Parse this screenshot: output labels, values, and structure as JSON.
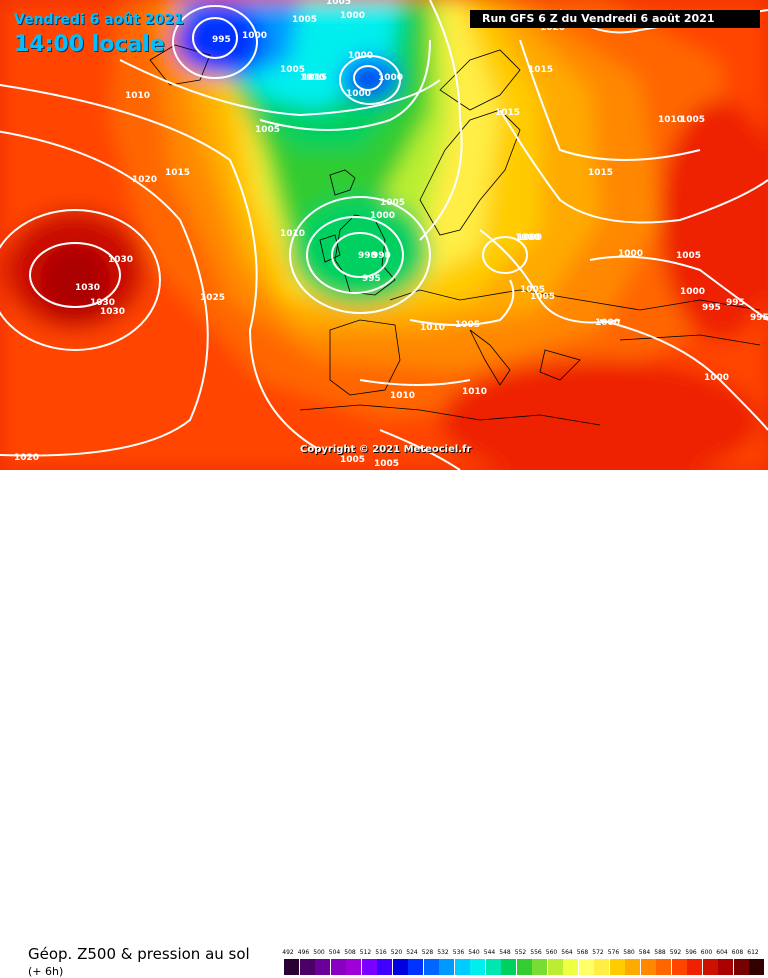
{
  "header": {
    "date": "Vendredi 6 août 2021",
    "time": "14:00 locale",
    "run": "Run GFS 6 Z du Vendredi 6 août 2021"
  },
  "copyright": "Copyright © 2021 Meteociel.fr",
  "legend": {
    "title": "Géop. Z500 & pression au sol",
    "subtitle": "(+ 6h)",
    "scale": [
      {
        "label": "492",
        "color": "#2a0033"
      },
      {
        "label": "496",
        "color": "#4b0066"
      },
      {
        "label": "500",
        "color": "#6a0099"
      },
      {
        "label": "504",
        "color": "#8a00c2"
      },
      {
        "label": "508",
        "color": "#a000d8"
      },
      {
        "label": "512",
        "color": "#7a00ff"
      },
      {
        "label": "516",
        "color": "#4000ff"
      },
      {
        "label": "520",
        "color": "#0000e0"
      },
      {
        "label": "524",
        "color": "#0033ff"
      },
      {
        "label": "528",
        "color": "#0066ff"
      },
      {
        "label": "532",
        "color": "#0099ff"
      },
      {
        "label": "536",
        "color": "#00ccff"
      },
      {
        "label": "540",
        "color": "#00eeee"
      },
      {
        "label": "544",
        "color": "#00e6b0"
      },
      {
        "label": "548",
        "color": "#00d060"
      },
      {
        "label": "552",
        "color": "#33cc33"
      },
      {
        "label": "556",
        "color": "#77dd33"
      },
      {
        "label": "560",
        "color": "#bbee33"
      },
      {
        "label": "564",
        "color": "#eeff44"
      },
      {
        "label": "568",
        "color": "#ffff66"
      },
      {
        "label": "572",
        "color": "#ffee44"
      },
      {
        "label": "576",
        "color": "#ffcc00"
      },
      {
        "label": "580",
        "color": "#ffaa00"
      },
      {
        "label": "584",
        "color": "#ff8800"
      },
      {
        "label": "588",
        "color": "#ff6600"
      },
      {
        "label": "592",
        "color": "#ff4400"
      },
      {
        "label": "596",
        "color": "#ee2200"
      },
      {
        "label": "600",
        "color": "#cc1100"
      },
      {
        "label": "604",
        "color": "#aa0000"
      },
      {
        "label": "608",
        "color": "#770000"
      },
      {
        "label": "612",
        "color": "#330000"
      }
    ]
  },
  "isobars": {
    "labels": [
      "995",
      "1000",
      "1005",
      "1000",
      "1005",
      "1005",
      "1010",
      "1005",
      "1015",
      "1000",
      "1000",
      "1000",
      "1010",
      "1020",
      "1015",
      "1015",
      "1015",
      "1030",
      "1030",
      "1030",
      "1030",
      "1025",
      "1010",
      "1005",
      "1000",
      "990",
      "990",
      "995",
      "1000",
      "1010",
      "1010",
      "1005",
      "1010",
      "1005",
      "1005",
      "1005",
      "1010",
      "1015",
      "1020",
      "1000",
      "1005",
      "1000",
      "995",
      "995",
      "995",
      "1000",
      "1000",
      "1020",
      "1005",
      "1005",
      "1000"
    ]
  }
}
